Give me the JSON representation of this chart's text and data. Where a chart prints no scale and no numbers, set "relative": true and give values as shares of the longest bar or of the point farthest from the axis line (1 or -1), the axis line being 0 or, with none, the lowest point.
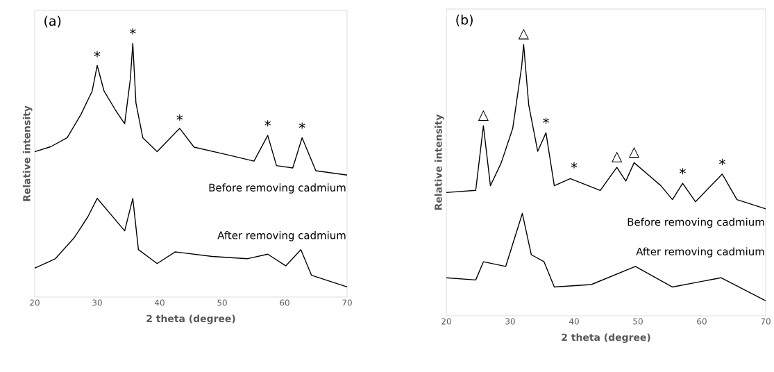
{
  "chart_data": [
    {
      "type": "line",
      "relative": true,
      "xlabel": "2 theta (degree)",
      "ylabel": "Relative intensity",
      "xlim": [
        20,
        70
      ],
      "xticks": [
        20,
        30,
        40,
        50,
        60,
        70
      ],
      "annotations": [
        "(a)",
        {
          "text": "*",
          "x": 30,
          "y": 0.91
        },
        {
          "text": "*",
          "x": 35.7,
          "y": 1.0
        },
        {
          "text": "*",
          "x": 43.2,
          "y": 0.66
        },
        {
          "text": "*",
          "x": 57.3,
          "y": 0.637
        },
        {
          "text": "*",
          "x": 62.8,
          "y": 0.628
        }
      ],
      "series": [
        {
          "name": "Before removing cadmium",
          "color": "#000000",
          "x": [
            20,
            22.6,
            25.2,
            27.4,
            29.2,
            30.0,
            31.1,
            32.9,
            34.4,
            35.3,
            35.7,
            36.2,
            37.3,
            39.6,
            43.2,
            45.5,
            50.3,
            55.1,
            57.3,
            58.7,
            61.3,
            62.8,
            65.0,
            70
          ],
          "values": [
            0.573,
            0.593,
            0.628,
            0.72,
            0.812,
            0.913,
            0.812,
            0.738,
            0.683,
            0.858,
            1.0,
            0.766,
            0.628,
            0.573,
            0.665,
            0.591,
            0.564,
            0.536,
            0.637,
            0.518,
            0.509,
            0.628,
            0.498,
            0.481
          ]
        },
        {
          "name": "After removing cadmium",
          "color": "#000000",
          "x": [
            20,
            23.3,
            26.3,
            28.5,
            30.0,
            32.2,
            34.4,
            35.7,
            36.6,
            39.6,
            42.5,
            48.4,
            54.0,
            57.3,
            60.2,
            62.6,
            64.3,
            70
          ],
          "values": [
            0.114,
            0.151,
            0.233,
            0.316,
            0.389,
            0.325,
            0.261,
            0.389,
            0.187,
            0.132,
            0.178,
            0.16,
            0.151,
            0.169,
            0.123,
            0.187,
            0.086,
            0.04
          ]
        }
      ]
    },
    {
      "type": "line",
      "relative": true,
      "xlabel": "2 theta (degree)",
      "ylabel": "Relative intensity",
      "xlim": [
        20,
        70
      ],
      "xticks": [
        20,
        30,
        40,
        50,
        60,
        70
      ],
      "annotations": [
        "(b)",
        {
          "text": "△",
          "x": 25.8,
          "y": 0.7
        },
        {
          "text": "△",
          "x": 32.1,
          "y": 1.0
        },
        {
          "text": "△",
          "x": 46.7,
          "y": 0.547
        },
        {
          "text": "△",
          "x": 49.4,
          "y": 0.564
        },
        {
          "text": "*",
          "x": 35.6,
          "y": 0.674
        },
        {
          "text": "*",
          "x": 40.0,
          "y": 0.51
        },
        {
          "text": "*",
          "x": 57.0,
          "y": 0.488
        },
        {
          "text": "*",
          "x": 63.2,
          "y": 0.522
        }
      ],
      "series": [
        {
          "name": "Before removing cadmium",
          "color": "#000000",
          "x": [
            20,
            24.6,
            25.8,
            26.9,
            28.6,
            30.4,
            31.8,
            32.1,
            32.9,
            34.3,
            35.6,
            36.9,
            39.4,
            44.1,
            46.7,
            48.1,
            49.4,
            53.6,
            55.4,
            57.0,
            59.0,
            63.2,
            65.5,
            70
          ],
          "values": [
            0.454,
            0.462,
            0.7,
            0.479,
            0.564,
            0.691,
            0.92,
            1.0,
            0.776,
            0.606,
            0.674,
            0.479,
            0.505,
            0.462,
            0.547,
            0.496,
            0.564,
            0.479,
            0.428,
            0.488,
            0.42,
            0.522,
            0.428,
            0.394
          ]
        },
        {
          "name": "After removing cadmium",
          "color": "#000000",
          "x": [
            20,
            24.6,
            25.8,
            29.3,
            31.9,
            33.3,
            35.3,
            36.9,
            42.7,
            49.6,
            55.4,
            63.0,
            70
          ],
          "values": [
            0.14,
            0.132,
            0.199,
            0.182,
            0.377,
            0.225,
            0.199,
            0.106,
            0.115,
            0.182,
            0.106,
            0.14,
            0.055
          ]
        }
      ]
    }
  ]
}
